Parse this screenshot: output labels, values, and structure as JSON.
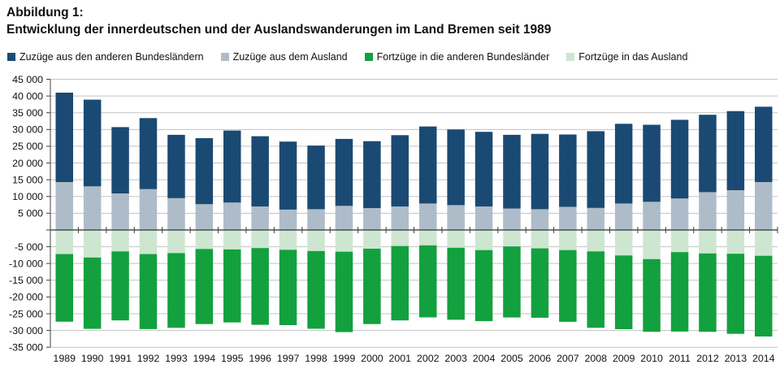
{
  "header": {
    "label": "Abbildung 1:",
    "title": "Entwicklung der innerdeutschen und der Auslandswanderungen im Land Bremen seit 1989"
  },
  "colors": {
    "blue_dark": "#1A4A73",
    "gray_blue": "#AEBCC9",
    "green_dark": "#12A13E",
    "green_light": "#CDE6D0",
    "gridline": "#C3C3C3",
    "axis": "#404040",
    "text": "#111111"
  },
  "legend": {
    "items": [
      {
        "label": "Zuzüge aus den anderen Bundesländern",
        "color": "#1A4A73"
      },
      {
        "label": "Zuzüge aus dem Ausland",
        "color": "#AEBCC9"
      },
      {
        "label": "Fortzüge in die anderen Bundesländer",
        "color": "#12A13E"
      },
      {
        "label": "Fortzüge in das Ausland",
        "color": "#CDE6D0"
      }
    ]
  },
  "chart_data": {
    "type": "bar",
    "stacked": true,
    "title": "Entwicklung der innerdeutschen und der Auslandswanderungen im Land Bremen seit 1989",
    "xlabel": "",
    "ylabel": "",
    "ylim": [
      -35000,
      45000
    ],
    "ytick_step": 5000,
    "grid": true,
    "legend_position": "top",
    "y_tick_labels": [
      "45 000",
      "40 000",
      "35 000",
      "30 000",
      "25 000",
      "20 000",
      "15 000",
      "10 000",
      "5 000",
      "",
      "-5 000",
      "-10 000",
      "-15 000",
      "-20 000",
      "-25 000",
      "-30 000",
      "-35 000"
    ],
    "categories": [
      "1989",
      "1990",
      "1991",
      "1992",
      "1993",
      "1994",
      "1995",
      "1996",
      "1997",
      "1998",
      "1999",
      "2000",
      "2001",
      "2002",
      "2003",
      "2004",
      "2005",
      "2006",
      "2007",
      "2008",
      "2009",
      "2010",
      "2011",
      "2012",
      "2013",
      "2014"
    ],
    "series": [
      {
        "key": "zuzuege-ausland",
        "name": "Zuzüge aus dem Ausland",
        "color": "#AEBCC9",
        "values": [
          14300,
          13000,
          10900,
          12200,
          9500,
          7700,
          8200,
          7000,
          6100,
          6200,
          7200,
          6500,
          7000,
          7900,
          7400,
          7000,
          6400,
          6200,
          6900,
          6600,
          7900,
          8400,
          9400,
          11300,
          11900,
          14300
        ]
      },
      {
        "key": "zuzuege-bundeslaender",
        "name": "Zuzüge aus den anderen Bundesländern",
        "color": "#1A4A73",
        "values": [
          26700,
          25900,
          19800,
          21200,
          18900,
          19700,
          21500,
          21000,
          20300,
          19000,
          20000,
          20000,
          21300,
          23000,
          22600,
          22300,
          22000,
          22500,
          21600,
          22900,
          23800,
          23000,
          23500,
          23100,
          23600,
          22500
        ]
      },
      {
        "key": "fortzuege-ausland",
        "name": "Fortzüge in das Ausland",
        "color": "#CDE6D0",
        "values": [
          -7200,
          -8200,
          -6400,
          -7200,
          -6900,
          -5700,
          -5800,
          -5400,
          -5900,
          -6300,
          -6500,
          -5600,
          -4800,
          -4600,
          -5300,
          -6000,
          -4900,
          -5500,
          -6000,
          -6400,
          -7600,
          -8700,
          -6600,
          -7000,
          -7100,
          -7700
        ]
      },
      {
        "key": "fortzuege-bundeslaender",
        "name": "Fortzüge in die anderen Bundesländer",
        "color": "#12A13E",
        "values": [
          -20200,
          -21300,
          -20600,
          -22400,
          -22300,
          -22400,
          -21800,
          -22900,
          -22500,
          -23200,
          -24000,
          -22500,
          -22200,
          -21500,
          -21500,
          -21200,
          -21200,
          -20700,
          -21400,
          -22800,
          -22000,
          -21700,
          -23700,
          -23400,
          -23900,
          -24100
        ]
      }
    ]
  }
}
